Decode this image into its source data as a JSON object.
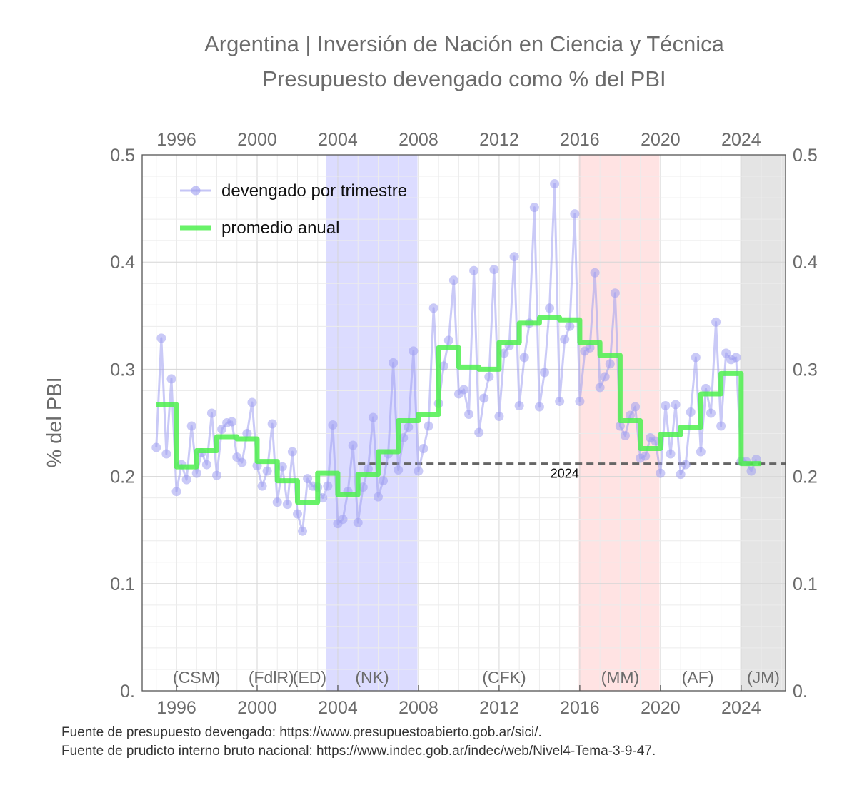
{
  "chart_data": {
    "type": "line",
    "title": "Argentina | Inversión de Nación en Ciencia y Técnica",
    "subtitle": "Presupuesto devengado como % del PBI",
    "ylabel": "% del PBI",
    "xlim": [
      1994.3,
      2026.2
    ],
    "ylim": [
      0,
      0.5
    ],
    "x_ticks": [
      1996,
      2000,
      2004,
      2008,
      2012,
      2016,
      2020,
      2024
    ],
    "y_ticks": [
      0,
      0.1,
      0.2,
      0.3,
      0.4,
      0.5
    ],
    "y_tick_labels": [
      "0.",
      "0.1",
      "0.2",
      "0.3",
      "0.4",
      "0.5"
    ],
    "grid": true,
    "legend_placement": "top-left",
    "series": [
      {
        "name": "devengado por trimestre",
        "color": "#9f9ff0",
        "x": [
          1995.0,
          1995.25,
          1995.5,
          1995.75,
          1996.0,
          1996.25,
          1996.5,
          1996.75,
          1997.0,
          1997.25,
          1997.5,
          1997.75,
          1998.0,
          1998.25,
          1998.5,
          1998.75,
          1999.0,
          1999.25,
          1999.5,
          1999.75,
          2000.0,
          2000.25,
          2000.5,
          2000.75,
          2001.0,
          2001.25,
          2001.5,
          2001.75,
          2002.0,
          2002.25,
          2002.5,
          2002.75,
          2003.0,
          2003.25,
          2003.5,
          2003.75,
          2004.0,
          2004.25,
          2004.5,
          2004.75,
          2005.0,
          2005.25,
          2005.5,
          2005.75,
          2006.0,
          2006.25,
          2006.5,
          2006.75,
          2007.0,
          2007.25,
          2007.5,
          2007.75,
          2008.0,
          2008.25,
          2008.5,
          2008.75,
          2009.0,
          2009.25,
          2009.5,
          2009.75,
          2010.0,
          2010.25,
          2010.5,
          2010.75,
          2011.0,
          2011.25,
          2011.5,
          2011.75,
          2012.0,
          2012.25,
          2012.5,
          2012.75,
          2013.0,
          2013.25,
          2013.5,
          2013.75,
          2014.0,
          2014.25,
          2014.5,
          2014.75,
          2015.0,
          2015.25,
          2015.5,
          2015.75,
          2016.0,
          2016.25,
          2016.5,
          2016.75,
          2017.0,
          2017.25,
          2017.5,
          2017.75,
          2018.0,
          2018.25,
          2018.5,
          2018.75,
          2019.0,
          2019.25,
          2019.5,
          2019.75,
          2020.0,
          2020.25,
          2020.5,
          2020.75,
          2021.0,
          2021.25,
          2021.5,
          2021.75,
          2022.0,
          2022.25,
          2022.5,
          2022.75,
          2023.0,
          2023.25,
          2023.5,
          2023.75,
          2024.0,
          2024.25,
          2024.5,
          2024.75
        ],
        "y": [
          0.227,
          0.329,
          0.221,
          0.291,
          0.186,
          0.211,
          0.197,
          0.247,
          0.203,
          0.222,
          0.211,
          0.259,
          0.201,
          0.244,
          0.25,
          0.251,
          0.218,
          0.213,
          0.24,
          0.269,
          0.21,
          0.191,
          0.205,
          0.249,
          0.176,
          0.209,
          0.174,
          0.223,
          0.165,
          0.149,
          0.198,
          0.191,
          0.19,
          0.18,
          0.191,
          0.248,
          0.156,
          0.16,
          0.186,
          0.229,
          0.157,
          0.19,
          0.207,
          0.255,
          0.181,
          0.196,
          0.221,
          0.306,
          0.206,
          0.236,
          0.246,
          0.317,
          0.205,
          0.226,
          0.247,
          0.357,
          0.268,
          0.303,
          0.327,
          0.383,
          0.277,
          0.281,
          0.258,
          0.392,
          0.241,
          0.273,
          0.293,
          0.393,
          0.256,
          0.315,
          0.322,
          0.405,
          0.266,
          0.311,
          0.343,
          0.451,
          0.265,
          0.297,
          0.357,
          0.473,
          0.27,
          0.328,
          0.34,
          0.445,
          0.27,
          0.317,
          0.32,
          0.39,
          0.283,
          0.293,
          0.305,
          0.371,
          0.247,
          0.238,
          0.257,
          0.265,
          0.217,
          0.219,
          0.236,
          0.233,
          0.203,
          0.266,
          0.221,
          0.267,
          0.202,
          0.211,
          0.26,
          0.311,
          0.223,
          0.282,
          0.259,
          0.344,
          0.247,
          0.315,
          0.309,
          0.311,
          0.214,
          0.214,
          0.205,
          0.216
        ]
      },
      {
        "name": "promedio anual",
        "color": "#4df04d",
        "x": [
          1995,
          1996,
          1997,
          1998,
          1999,
          2000,
          2001,
          2002,
          2003,
          2004,
          2005,
          2006,
          2007,
          2008,
          2009,
          2010,
          2011,
          2012,
          2013,
          2014,
          2015,
          2016,
          2017,
          2018,
          2019,
          2020,
          2021,
          2022,
          2023,
          2024
        ],
        "y": [
          0.267,
          0.209,
          0.224,
          0.237,
          0.235,
          0.214,
          0.196,
          0.176,
          0.203,
          0.183,
          0.202,
          0.223,
          0.252,
          0.258,
          0.32,
          0.302,
          0.3,
          0.325,
          0.343,
          0.348,
          0.346,
          0.325,
          0.313,
          0.252,
          0.226,
          0.239,
          0.246,
          0.277,
          0.296,
          0.212
        ]
      }
    ],
    "reference_line": {
      "label": "2024",
      "y": 0.212,
      "x_start": 2005.0,
      "x_end": 2026.2,
      "color": "#666666"
    },
    "periods": [
      {
        "label": "(CSM)",
        "label_x": 1997.0,
        "start": null,
        "end": null,
        "color": null
      },
      {
        "label": "(FdlR)",
        "label_x": 2000.7,
        "start": null,
        "end": null,
        "color": null
      },
      {
        "label": "(ED)",
        "label_x": 2002.6,
        "start": null,
        "end": null,
        "color": null
      },
      {
        "label": "(NK)",
        "label_x": 2005.7,
        "start": 2003.4,
        "end": 2007.95,
        "color": "#dcdcff"
      },
      {
        "label": "(CFK)",
        "label_x": 2012.25,
        "start": null,
        "end": null,
        "color": null
      },
      {
        "label": "(MM)",
        "label_x": 2018.0,
        "start": 2015.95,
        "end": 2019.95,
        "color": "#ffe3e3"
      },
      {
        "label": "(AF)",
        "label_x": 2021.85,
        "start": null,
        "end": null,
        "color": null
      },
      {
        "label": "(JM)",
        "label_x": 2025.1,
        "start": 2023.95,
        "end": 2026.2,
        "color": "#e4e4e4"
      }
    ]
  },
  "footer": {
    "source_1": "Fuente de presupuesto devengado: https://www.presupuestoabierto.gob.ar/sici/.",
    "source_2": "Fuente de prudicto interno bruto nacional: https://www.indec.gob.ar/indec/web/Nivel4-Tema-3-9-47."
  }
}
